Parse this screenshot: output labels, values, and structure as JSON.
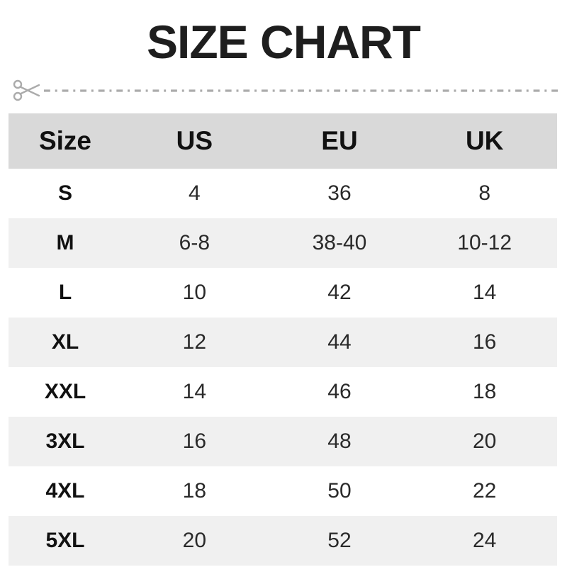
{
  "chart_data": {
    "type": "table",
    "title": "SIZE CHART",
    "columns": [
      "Size",
      "US",
      "EU",
      "UK"
    ],
    "rows": [
      [
        "S",
        "4",
        "36",
        "8"
      ],
      [
        "M",
        "6-8",
        "38-40",
        "10-12"
      ],
      [
        "L",
        "10",
        "42",
        "14"
      ],
      [
        "XL",
        "12",
        "44",
        "16"
      ],
      [
        "XXL",
        "14",
        "46",
        "18"
      ],
      [
        "3XL",
        "16",
        "48",
        "20"
      ],
      [
        "4XL",
        "18",
        "50",
        "22"
      ],
      [
        "5XL",
        "20",
        "52",
        "24"
      ]
    ],
    "layout": {
      "header_background": "#d9d9d9",
      "alt_row_background": "#f0f0f0",
      "row_background": "#ffffff",
      "grid": "off",
      "zebra_striping": true
    }
  },
  "cut_line": {
    "icon": "scissors",
    "style": "dash-dot",
    "color": "#ababab"
  },
  "colors": {
    "title_text": "#1e1e1e",
    "header_text": "#111111",
    "value_text": "#2a2a2a"
  }
}
